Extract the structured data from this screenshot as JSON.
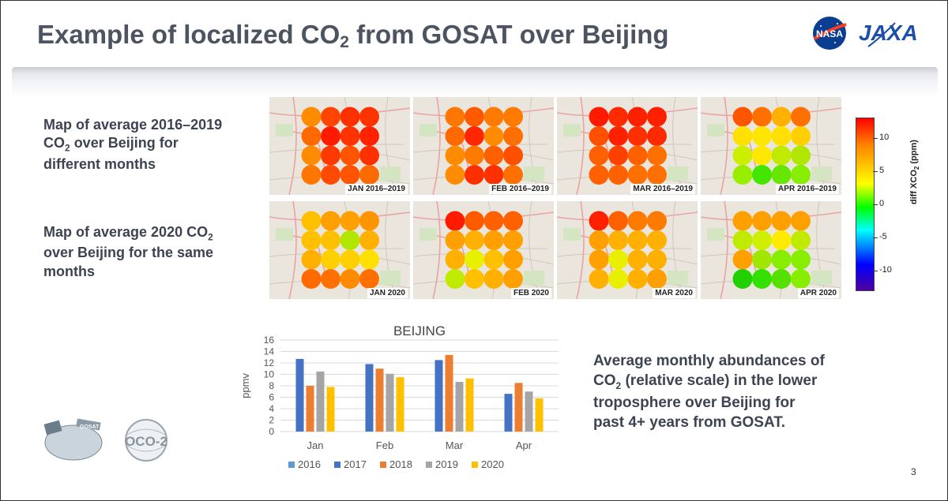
{
  "slide": {
    "title_main": "Example of localized CO",
    "title_sub": "2",
    "title_tail": " from GOSAT over Beijing",
    "page_number": "3"
  },
  "logos": {
    "nasa": "NASA",
    "jaxa": "JAXA",
    "gosat": "GOSAT",
    "oco2": "OCO-2"
  },
  "descriptions": {
    "top_line1": "Map of average 2016–2019",
    "top_line2_a": "CO",
    "top_line2_sub": "2",
    "top_line2_b": " over Beijing for",
    "top_line3": "different months",
    "bottom_line1_a": "Map of average 2020 CO",
    "bottom_line1_sub": "2",
    "bottom_line2": "over Beijing for the same",
    "bottom_line3": "months"
  },
  "maps": {
    "row_labels": [
      [
        "JAN 2016–2019",
        "FEB 2016–2019",
        "MAR 2016–2019",
        "APR 2016–2019"
      ],
      [
        "JAN 2020",
        "FEB 2020",
        "MAR 2020",
        "APR 2020"
      ]
    ],
    "cell_colors": [
      [
        [
          "#ff8c00",
          "#ff4500",
          "#ff3000",
          "#ff3300",
          "#ff6a00",
          "#ff1a00",
          "#ff3300",
          "#ff2200",
          "#ff8c00",
          "#ff3a00",
          "#ff5500",
          "#ff3000",
          "#ff7700",
          "#ff4a00",
          "#ff5500",
          "#ff6a00"
        ],
        [
          "#ff7700",
          "#ff5a00",
          "#ff7a00",
          "#ff7a00",
          "#ff6a00",
          "#ff2600",
          "#ff8c00",
          "#ff7000",
          "#ff8c00",
          "#ff7a00",
          "#ff6000",
          "#ff5000",
          "#ff8c00",
          "#ff3000",
          "#ff3000",
          "#ff7000"
        ],
        [
          "#ff1a00",
          "#ff2a00",
          "#ff2000",
          "#ff2000",
          "#ff5000",
          "#ff2000",
          "#ff3000",
          "#ff2a00",
          "#ff6000",
          "#ff4000",
          "#ff6000",
          "#ff7000",
          "#ff6000",
          "#ff6000",
          "#ff7000",
          "#ff7000"
        ],
        [
          "#ff5500",
          "#ff7000",
          "#ffb000",
          "#ff7000",
          "#ffe000",
          "#ffe600",
          "#ffe000",
          "#ffd000",
          "#ccef00",
          "#ffe800",
          "#c0ea00",
          "#b0e600",
          "#99ee00",
          "#44e600",
          "#66e600",
          "#88ee00"
        ]
      ],
      [
        [
          "#ffc000",
          "#ffa000",
          "#ffa000",
          "#ff9500",
          "#ffc000",
          "#ffc000",
          "#b0e600",
          "#ffb000",
          "#ffb000",
          "#ffd000",
          "#ffd000",
          "#ffe000",
          "#ff6a00",
          "#ff7000",
          "#ff8c00",
          "#ff7000"
        ],
        [
          "#ff1a00",
          "#ff5a00",
          "#ff6000",
          "#ff6000",
          "#ffa000",
          "#ffb000",
          "#ffa000",
          "#ffa000",
          "#ffb000",
          "#e8f000",
          "#ffc000",
          "#ffa000",
          "#c0ea00",
          "#ffc000",
          "#ffb000",
          "#ffa000"
        ],
        [
          "#ff2000",
          "#ff6000",
          "#ff7a00",
          "#ff7a00",
          "#ffa000",
          "#ffb000",
          "#ffb000",
          "#ffb000",
          "#ffa000",
          "#e8f000",
          "#ffb000",
          "#ffb000",
          "#ffb000",
          "#e8f000",
          "#ffb000",
          "#ffa000"
        ],
        [
          "#ffa000",
          "#ffa000",
          "#ffa000",
          "#ffa000",
          "#c0ea00",
          "#d0ee00",
          "#ffea00",
          "#c0ea00",
          "#ffa000",
          "#a0e600",
          "#88ee00",
          "#88ee00",
          "#22d000",
          "#33e000",
          "#55e000",
          "#88ee00"
        ]
      ]
    ]
  },
  "colorbar": {
    "title_a": "diff XCO",
    "title_sub": "2",
    "title_b": " (ppm)",
    "ticks": [
      {
        "label": "10",
        "value": 10
      },
      {
        "label": "5",
        "value": 5
      },
      {
        "label": "0",
        "value": 0
      },
      {
        "label": "-5",
        "value": -5
      },
      {
        "label": "-10",
        "value": -10
      }
    ],
    "range": [
      -13,
      13
    ]
  },
  "caption": {
    "line1": "Average monthly abundances of",
    "line2_a": "CO",
    "line2_sub": "2",
    "line2_b": " (relative scale) in the lower",
    "line3": "troposphere over Beijing for",
    "line4": "past 4+ years from GOSAT."
  },
  "chart_data": {
    "type": "bar",
    "title": "BEIJING",
    "xlabel": "",
    "ylabel": "ppmv",
    "categories": [
      "Jan",
      "Feb",
      "Mar",
      "Apr"
    ],
    "ylim": [
      0,
      16
    ],
    "yticks": [
      "0",
      "2",
      "4",
      "6",
      "8",
      "10",
      "12",
      "14",
      "16"
    ],
    "grid": true,
    "legend_position": "bottom",
    "series": [
      {
        "name": "2016",
        "color": "#5b9bd5",
        "values": [
          null,
          null,
          null,
          null
        ]
      },
      {
        "name": "2017",
        "color": "#4472c4",
        "values": [
          12.7,
          11.8,
          12.5,
          6.6
        ]
      },
      {
        "name": "2018",
        "color": "#ed7d31",
        "values": [
          8.0,
          11.0,
          13.4,
          8.5
        ]
      },
      {
        "name": "2019",
        "color": "#a5a5a5",
        "values": [
          10.5,
          10.1,
          8.7,
          7.0
        ]
      },
      {
        "name": "2020",
        "color": "#ffc000",
        "values": [
          7.8,
          9.5,
          9.3,
          5.8
        ]
      }
    ]
  }
}
